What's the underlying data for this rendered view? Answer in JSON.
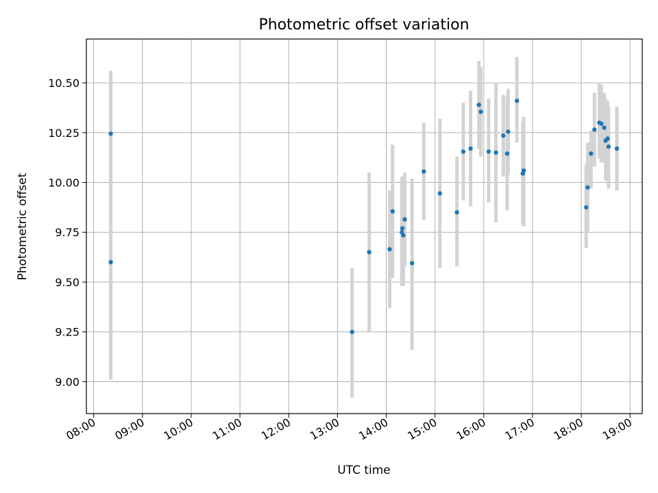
{
  "chart_data": {
    "type": "scatter",
    "title": "Photometric offset variation",
    "xlabel": "UTC time",
    "ylabel": "Photometric offset",
    "xlim": [
      7.85,
      19.25
    ],
    "ylim": [
      8.84,
      10.72
    ],
    "grid": true,
    "legend": "none",
    "x_ticks": [
      {
        "value": 8,
        "label": "08:00"
      },
      {
        "value": 9,
        "label": "09:00"
      },
      {
        "value": 10,
        "label": "10:00"
      },
      {
        "value": 11,
        "label": "11:00"
      },
      {
        "value": 12,
        "label": "12:00"
      },
      {
        "value": 13,
        "label": "13:00"
      },
      {
        "value": 14,
        "label": "14:00"
      },
      {
        "value": 15,
        "label": "15:00"
      },
      {
        "value": 16,
        "label": "16:00"
      },
      {
        "value": 17,
        "label": "17:00"
      },
      {
        "value": 18,
        "label": "18:00"
      },
      {
        "value": 19,
        "label": "19:00"
      }
    ],
    "y_ticks": [
      {
        "value": 9.0,
        "label": "9.00"
      },
      {
        "value": 9.25,
        "label": "9.25"
      },
      {
        "value": 9.5,
        "label": "9.50"
      },
      {
        "value": 9.75,
        "label": "9.75"
      },
      {
        "value": 10.0,
        "label": "10.00"
      },
      {
        "value": 10.25,
        "label": "10.25"
      },
      {
        "value": 10.5,
        "label": "10.50"
      }
    ],
    "colors": {
      "point": "#1f77b4",
      "errorbar": "#d3d3d3",
      "grid": "#b0b0b0"
    },
    "points": [
      {
        "t": 8.35,
        "y": 10.245,
        "lo": 9.93,
        "hi": 10.56
      },
      {
        "t": 8.35,
        "y": 9.6,
        "lo": 9.01,
        "hi": 10.2
      },
      {
        "t": 13.3,
        "y": 9.25,
        "lo": 8.92,
        "hi": 9.57
      },
      {
        "t": 13.65,
        "y": 9.65,
        "lo": 9.25,
        "hi": 10.05
      },
      {
        "t": 14.07,
        "y": 9.665,
        "lo": 9.37,
        "hi": 9.96
      },
      {
        "t": 14.13,
        "y": 9.855,
        "lo": 9.52,
        "hi": 10.19
      },
      {
        "t": 14.32,
        "y": 9.75,
        "lo": 9.48,
        "hi": 10.02
      },
      {
        "t": 14.33,
        "y": 9.77,
        "lo": 9.5,
        "hi": 10.03
      },
      {
        "t": 14.35,
        "y": 9.735,
        "lo": 9.48,
        "hi": 10.0
      },
      {
        "t": 14.38,
        "y": 9.815,
        "lo": 9.58,
        "hi": 10.05
      },
      {
        "t": 14.53,
        "y": 9.595,
        "lo": 9.16,
        "hi": 10.02
      },
      {
        "t": 14.77,
        "y": 10.055,
        "lo": 9.81,
        "hi": 10.3
      },
      {
        "t": 15.1,
        "y": 9.945,
        "lo": 9.57,
        "hi": 10.32
      },
      {
        "t": 15.45,
        "y": 9.85,
        "lo": 9.58,
        "hi": 10.13
      },
      {
        "t": 15.58,
        "y": 10.155,
        "lo": 9.91,
        "hi": 10.4
      },
      {
        "t": 15.73,
        "y": 10.17,
        "lo": 9.88,
        "hi": 10.46
      },
      {
        "t": 15.9,
        "y": 10.39,
        "lo": 10.17,
        "hi": 10.61
      },
      {
        "t": 15.94,
        "y": 10.355,
        "lo": 10.13,
        "hi": 10.58
      },
      {
        "t": 16.1,
        "y": 10.155,
        "lo": 9.9,
        "hi": 10.42
      },
      {
        "t": 16.25,
        "y": 10.15,
        "lo": 9.8,
        "hi": 10.5
      },
      {
        "t": 16.4,
        "y": 10.235,
        "lo": 10.03,
        "hi": 10.44
      },
      {
        "t": 16.48,
        "y": 10.145,
        "lo": 9.86,
        "hi": 10.43
      },
      {
        "t": 16.5,
        "y": 10.255,
        "lo": 10.04,
        "hi": 10.47
      },
      {
        "t": 16.68,
        "y": 10.41,
        "lo": 10.2,
        "hi": 10.63
      },
      {
        "t": 16.8,
        "y": 10.045,
        "lo": 9.79,
        "hi": 10.3
      },
      {
        "t": 16.82,
        "y": 10.06,
        "lo": 9.78,
        "hi": 10.33
      },
      {
        "t": 18.1,
        "y": 9.875,
        "lo": 9.67,
        "hi": 10.09
      },
      {
        "t": 18.13,
        "y": 9.975,
        "lo": 9.75,
        "hi": 10.2
      },
      {
        "t": 18.2,
        "y": 10.145,
        "lo": 9.97,
        "hi": 10.26
      },
      {
        "t": 18.27,
        "y": 10.265,
        "lo": 10.08,
        "hi": 10.45
      },
      {
        "t": 18.37,
        "y": 10.3,
        "lo": 10.12,
        "hi": 10.5
      },
      {
        "t": 18.41,
        "y": 10.295,
        "lo": 10.1,
        "hi": 10.49
      },
      {
        "t": 18.47,
        "y": 10.275,
        "lo": 10.1,
        "hi": 10.45
      },
      {
        "t": 18.5,
        "y": 10.21,
        "lo": 10.01,
        "hi": 10.42
      },
      {
        "t": 18.54,
        "y": 10.22,
        "lo": 10.02,
        "hi": 10.41
      },
      {
        "t": 18.56,
        "y": 10.18,
        "lo": 9.97,
        "hi": 10.38
      },
      {
        "t": 18.73,
        "y": 10.17,
        "lo": 9.96,
        "hi": 10.38
      }
    ]
  }
}
